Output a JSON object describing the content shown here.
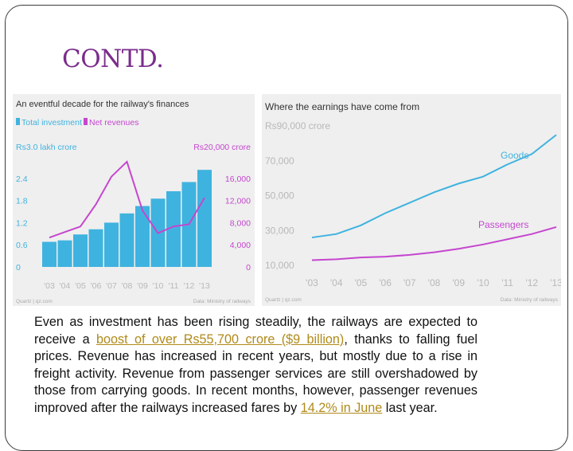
{
  "slide": {
    "title": "CONTD.",
    "body_parts": [
      {
        "text": "Even as investment has been rising steadily, the railways are expected to receive a ",
        "style": "normal"
      },
      {
        "text": "boost of over Rs55,700 crore ($9 billion)",
        "style": "hl"
      },
      {
        "text": ", thanks to falling fuel prices. Revenue has increased in recent years, but mostly due to a rise in freight activity. Revenue from passenger services are still overshadowed by those from carrying goods. In recent months, however, passenger revenues improved after the railways increased fares by ",
        "style": "normal"
      },
      {
        "text": "14.2% in June",
        "style": "hl"
      },
      {
        "text": " last year.",
        "style": "normal"
      }
    ]
  },
  "colors": {
    "title": "#7a2c8c",
    "bar": "#3fb3df",
    "net": "#c546cf",
    "goods": "#3fb3df",
    "passengers": "#c546cf",
    "axis_text": "#b8b8b8",
    "highlight": "#b08a1a"
  },
  "chart_data": [
    {
      "type": "bar",
      "title": "An eventful decade for the railway's finances",
      "legend": [
        "Total investment",
        "Net revenues"
      ],
      "legend_placement": "top-left",
      "categories": [
        "'03",
        "'04",
        "'05",
        "'06",
        "'07",
        "'08",
        "'09",
        "'10",
        "'11",
        "'12",
        "'13"
      ],
      "left_axis": {
        "unit_label": "Rs3.0 lakh crore",
        "ticks": [
          "2.4",
          "1.8",
          "1.2",
          "0.6",
          "0"
        ],
        "range": [
          0,
          3.0
        ]
      },
      "right_axis": {
        "unit_label": "Rs20,000 crore",
        "ticks": [
          "16,000",
          "12,000",
          "8,000",
          "4,000",
          "0"
        ],
        "range": [
          0,
          20000
        ]
      },
      "series": [
        {
          "name": "Total investment",
          "kind": "bar",
          "axis": "left",
          "values": [
            0.68,
            0.72,
            0.88,
            1.02,
            1.2,
            1.45,
            1.65,
            1.85,
            2.05,
            2.3,
            2.63
          ]
        },
        {
          "name": "Net revenues",
          "kind": "line",
          "axis": "right",
          "values": [
            5300,
            6300,
            7300,
            11300,
            16300,
            19000,
            10200,
            6100,
            7300,
            7700,
            12500
          ]
        }
      ],
      "grid": false,
      "source": "Quartz | qz.com",
      "credit": "Data: Ministry of railways"
    },
    {
      "type": "line",
      "title": "Where the earnings have come from",
      "y_unit_label": "Rs90,000 crore",
      "y_ticks": [
        "70,000",
        "50,000",
        "30,000",
        "10,000"
      ],
      "ylim": [
        0,
        90000
      ],
      "categories": [
        "'03",
        "'04",
        "'05",
        "'06",
        "'07",
        "'08",
        "'09",
        "'10",
        "'11",
        "'12",
        "'13"
      ],
      "series": [
        {
          "name": "Goods",
          "values": [
            26000,
            28000,
            33000,
            40000,
            46000,
            52000,
            57000,
            61000,
            68000,
            74000,
            85000
          ]
        },
        {
          "name": "Passengers",
          "values": [
            13000,
            13500,
            14500,
            15000,
            16000,
            17500,
            19500,
            22000,
            25000,
            28000,
            32000
          ]
        }
      ],
      "grid": false,
      "source": "Quartz | qz.com",
      "credit": "Data: Ministry of railways"
    }
  ]
}
